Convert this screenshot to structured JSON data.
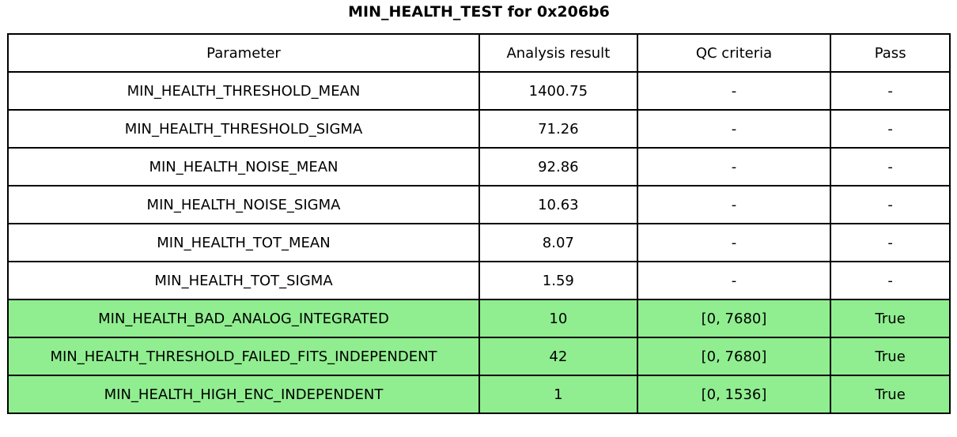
{
  "title": "MIN_HEALTH_TEST for 0x206b6",
  "colors": {
    "highlight_green": "#90ee90",
    "border": "#000000",
    "background": "#ffffff",
    "text": "#000000"
  },
  "chart_data": {
    "type": "table",
    "title": "MIN_HEALTH_TEST for 0x206b6",
    "columns": [
      "Parameter",
      "Analysis result",
      "QC criteria",
      "Pass"
    ],
    "rows": [
      {
        "parameter": "MIN_HEALTH_THRESHOLD_MEAN",
        "analysis_result": "1400.75",
        "qc_criteria": "-",
        "pass": "-",
        "highlighted": false
      },
      {
        "parameter": "MIN_HEALTH_THRESHOLD_SIGMA",
        "analysis_result": "71.26",
        "qc_criteria": "-",
        "pass": "-",
        "highlighted": false
      },
      {
        "parameter": "MIN_HEALTH_NOISE_MEAN",
        "analysis_result": "92.86",
        "qc_criteria": "-",
        "pass": "-",
        "highlighted": false
      },
      {
        "parameter": "MIN_HEALTH_NOISE_SIGMA",
        "analysis_result": "10.63",
        "qc_criteria": "-",
        "pass": "-",
        "highlighted": false
      },
      {
        "parameter": "MIN_HEALTH_TOT_MEAN",
        "analysis_result": "8.07",
        "qc_criteria": "-",
        "pass": "-",
        "highlighted": false
      },
      {
        "parameter": "MIN_HEALTH_TOT_SIGMA",
        "analysis_result": "1.59",
        "qc_criteria": "-",
        "pass": "-",
        "highlighted": false
      },
      {
        "parameter": "MIN_HEALTH_BAD_ANALOG_INTEGRATED",
        "analysis_result": "10",
        "qc_criteria": "[0, 7680]",
        "pass": "True",
        "highlighted": true
      },
      {
        "parameter": "MIN_HEALTH_THRESHOLD_FAILED_FITS_INDEPENDENT",
        "analysis_result": "42",
        "qc_criteria": "[0, 7680]",
        "pass": "True",
        "highlighted": true
      },
      {
        "parameter": "MIN_HEALTH_HIGH_ENC_INDEPENDENT",
        "analysis_result": "1",
        "qc_criteria": "[0, 1536]",
        "pass": "True",
        "highlighted": true
      }
    ]
  }
}
